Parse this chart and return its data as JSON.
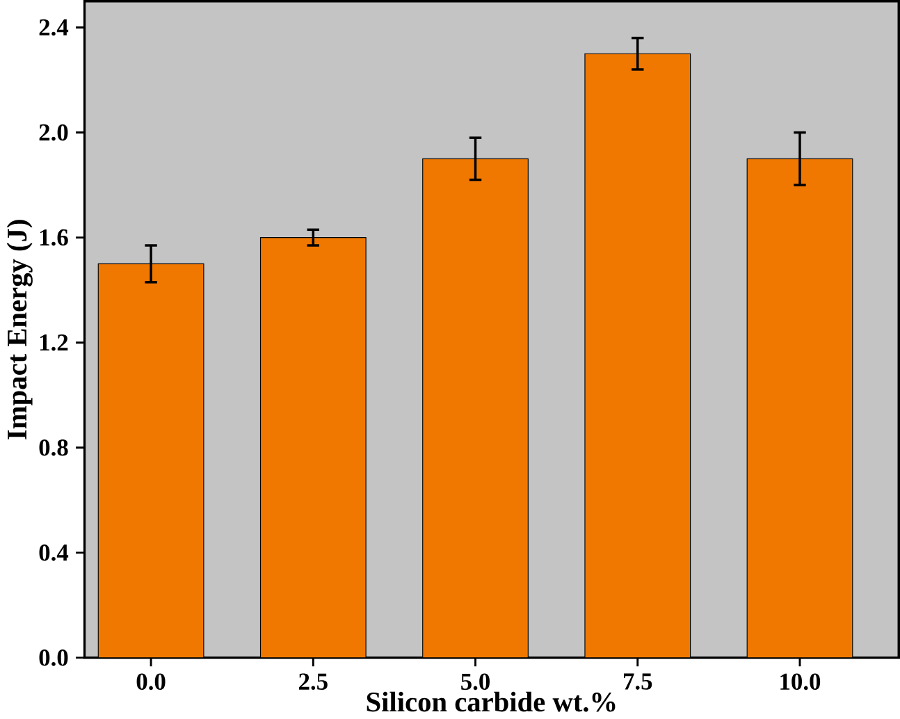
{
  "chart_data": {
    "type": "bar",
    "xlabel": "Silicon carbide wt.%",
    "ylabel": "Impact Energy (J)",
    "categories": [
      "0.0",
      "2.5",
      "5.0",
      "7.5",
      "10.0"
    ],
    "values": [
      1.5,
      1.6,
      1.9,
      2.3,
      1.9
    ],
    "errors": [
      0.07,
      0.03,
      0.08,
      0.06,
      0.1
    ],
    "color": "#f07800",
    "ylim": [
      0,
      2.5
    ],
    "yticks": [
      {
        "value": 0,
        "label": "0.0"
      },
      0.4,
      0.8,
      1.2,
      1.6,
      {
        "value": 2,
        "label": "2.0"
      },
      2.4
    ]
  }
}
